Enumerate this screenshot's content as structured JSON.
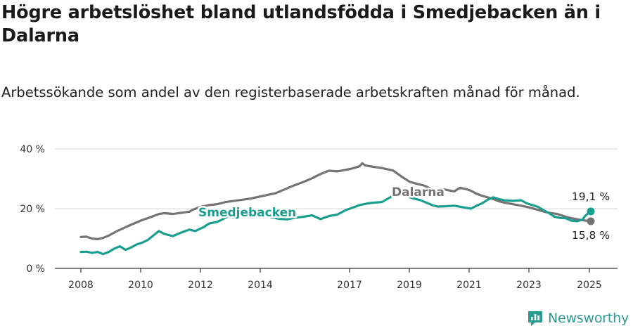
{
  "header": {
    "title": "Högre arbetslöshet bland utlandsfödda i Smedjebacken än i Dalarna",
    "subtitle": "Arbetssökande som andel av den registerbaserade arbetskraften månad för månad."
  },
  "brand": {
    "name": "Newsworthy",
    "icon": "newsworthy-logo-icon",
    "color": "#2a9d8f"
  },
  "chart_data": {
    "type": "line",
    "title": "Högre arbetslöshet bland utlandsfödda i Smedjebacken än i Dalarna",
    "subtitle": "Arbetssökande som andel av den registerbaserade arbetskraften månad för månad.",
    "xlabel": "",
    "ylabel": "",
    "xlim": [
      2007.4,
      2025.9
    ],
    "ylim": [
      0,
      40
    ],
    "x_ticks": [
      "2008",
      "2010",
      "2012",
      "2014",
      "2017",
      "2019",
      "2021",
      "2023",
      "2025"
    ],
    "y_ticks": [
      {
        "value": 0,
        "label": "0 %"
      },
      {
        "value": 20,
        "label": "20 %"
      },
      {
        "value": 40,
        "label": "40 %"
      }
    ],
    "grid": "horizontal",
    "legend": "direct labels",
    "series": [
      {
        "name": "Dalarna",
        "color": "#757373",
        "end_label": "15,8 %",
        "points": [
          [
            2008.0,
            10.5
          ],
          [
            2008.2,
            10.6
          ],
          [
            2008.4,
            10.0
          ],
          [
            2008.6,
            9.8
          ],
          [
            2008.8,
            10.2
          ],
          [
            2009.0,
            11.0
          ],
          [
            2009.3,
            12.5
          ],
          [
            2009.6,
            13.8
          ],
          [
            2009.8,
            14.6
          ],
          [
            2010.0,
            15.4
          ],
          [
            2010.2,
            16.2
          ],
          [
            2010.4,
            16.8
          ],
          [
            2010.6,
            17.5
          ],
          [
            2010.8,
            18.2
          ],
          [
            2011.0,
            18.5
          ],
          [
            2011.3,
            18.2
          ],
          [
            2011.6,
            18.6
          ],
          [
            2011.9,
            19.0
          ],
          [
            2012.0,
            19.6
          ],
          [
            2012.3,
            20.6
          ],
          [
            2012.6,
            21.2
          ],
          [
            2012.9,
            21.5
          ],
          [
            2013.2,
            22.2
          ],
          [
            2013.5,
            22.6
          ],
          [
            2013.8,
            23.0
          ],
          [
            2014.1,
            23.4
          ],
          [
            2014.4,
            24.0
          ],
          [
            2014.7,
            24.6
          ],
          [
            2015.0,
            25.2
          ],
          [
            2015.3,
            26.4
          ],
          [
            2015.6,
            27.6
          ],
          [
            2016.0,
            29.0
          ],
          [
            2016.3,
            30.2
          ],
          [
            2016.6,
            31.6
          ],
          [
            2016.9,
            32.7
          ],
          [
            2017.2,
            32.5
          ],
          [
            2017.5,
            33.0
          ],
          [
            2017.8,
            33.6
          ],
          [
            2018.0,
            34.2
          ],
          [
            2018.1,
            35.2
          ],
          [
            2018.2,
            34.5
          ],
          [
            2018.5,
            34.0
          ],
          [
            2018.8,
            33.6
          ],
          [
            2019.1,
            33.0
          ],
          [
            2019.2,
            32.8
          ],
          [
            2019.5,
            30.8
          ],
          [
            2019.8,
            29.0
          ],
          [
            2020.1,
            28.2
          ],
          [
            2020.3,
            27.8
          ],
          [
            2020.5,
            27.0
          ],
          [
            2020.7,
            26.2
          ],
          [
            2021.0,
            26.5
          ],
          [
            2021.4,
            25.8
          ],
          [
            2021.6,
            27.0
          ],
          [
            2021.8,
            26.6
          ],
          [
            2022.0,
            26.0
          ],
          [
            2022.2,
            25.0
          ],
          [
            2022.4,
            24.3
          ],
          [
            2022.6,
            23.8
          ],
          [
            2022.8,
            23.2
          ],
          [
            2023.0,
            22.5
          ],
          [
            2023.2,
            22.0
          ],
          [
            2023.5,
            21.5
          ],
          [
            2023.8,
            21.0
          ],
          [
            2024.1,
            20.4
          ],
          [
            2024.4,
            19.6
          ],
          [
            2024.7,
            18.8
          ],
          [
            2024.9,
            18.5
          ],
          [
            2025.1,
            18.2
          ],
          [
            2025.4,
            17.3
          ],
          [
            2025.6,
            16.8
          ],
          [
            2025.9,
            16.3
          ],
          [
            2026.1,
            16.0
          ],
          [
            2026.3,
            15.8
          ]
        ]
      },
      {
        "name": "Smedjebacken",
        "color": "#1a9e8f",
        "end_label": "19,1 %",
        "points": [
          [
            2008.0,
            5.5
          ],
          [
            2008.2,
            5.6
          ],
          [
            2008.4,
            5.2
          ],
          [
            2008.6,
            5.5
          ],
          [
            2008.8,
            4.8
          ],
          [
            2009.0,
            5.5
          ],
          [
            2009.2,
            6.6
          ],
          [
            2009.4,
            7.4
          ],
          [
            2009.6,
            6.2
          ],
          [
            2009.8,
            7.0
          ],
          [
            2010.0,
            8.0
          ],
          [
            2010.2,
            8.6
          ],
          [
            2010.4,
            9.5
          ],
          [
            2010.6,
            11.0
          ],
          [
            2010.8,
            12.5
          ],
          [
            2011.0,
            11.5
          ],
          [
            2011.3,
            10.8
          ],
          [
            2011.6,
            12.0
          ],
          [
            2011.9,
            13.0
          ],
          [
            2012.1,
            12.5
          ],
          [
            2012.4,
            13.8
          ],
          [
            2012.6,
            15.0
          ],
          [
            2012.9,
            15.6
          ],
          [
            2013.1,
            16.5
          ],
          [
            2013.3,
            17.5
          ],
          [
            2013.5,
            17.0
          ],
          [
            2013.8,
            17.8
          ],
          [
            2014.0,
            18.2
          ],
          [
            2014.3,
            17.5
          ],
          [
            2014.6,
            17.8
          ],
          [
            2014.8,
            17.2
          ],
          [
            2015.1,
            16.6
          ],
          [
            2015.4,
            16.4
          ],
          [
            2015.7,
            17.0
          ],
          [
            2016.0,
            17.3
          ],
          [
            2016.3,
            17.8
          ],
          [
            2016.6,
            16.5
          ],
          [
            2016.9,
            17.5
          ],
          [
            2017.2,
            18.0
          ],
          [
            2017.5,
            19.5
          ],
          [
            2017.8,
            20.5
          ],
          [
            2018.0,
            21.2
          ],
          [
            2018.3,
            21.8
          ],
          [
            2018.5,
            22.0
          ],
          [
            2018.8,
            22.2
          ],
          [
            2019.1,
            23.8
          ],
          [
            2019.3,
            25.2
          ],
          [
            2019.5,
            25.6
          ],
          [
            2019.7,
            24.2
          ],
          [
            2019.9,
            23.5
          ],
          [
            2020.2,
            22.8
          ],
          [
            2020.4,
            22.0
          ],
          [
            2020.6,
            21.2
          ],
          [
            2020.8,
            20.7
          ],
          [
            2021.1,
            20.8
          ],
          [
            2021.4,
            21.0
          ],
          [
            2021.7,
            20.5
          ],
          [
            2022.0,
            20.0
          ],
          [
            2022.2,
            21.0
          ],
          [
            2022.4,
            21.8
          ],
          [
            2022.6,
            23.0
          ],
          [
            2022.8,
            23.8
          ],
          [
            2023.0,
            23.2
          ],
          [
            2023.2,
            22.8
          ],
          [
            2023.5,
            22.6
          ],
          [
            2023.8,
            22.8
          ],
          [
            2024.0,
            21.8
          ],
          [
            2024.2,
            21.2
          ],
          [
            2024.4,
            20.6
          ],
          [
            2024.6,
            19.5
          ],
          [
            2024.8,
            18.5
          ],
          [
            2025.0,
            17.3
          ],
          [
            2025.2,
            16.9
          ],
          [
            2025.4,
            16.8
          ],
          [
            2025.6,
            16.0
          ],
          [
            2025.8,
            15.8
          ],
          [
            2026.0,
            16.3
          ],
          [
            2026.1,
            17.6
          ],
          [
            2026.2,
            18.4
          ],
          [
            2026.3,
            19.1
          ]
        ]
      }
    ]
  }
}
